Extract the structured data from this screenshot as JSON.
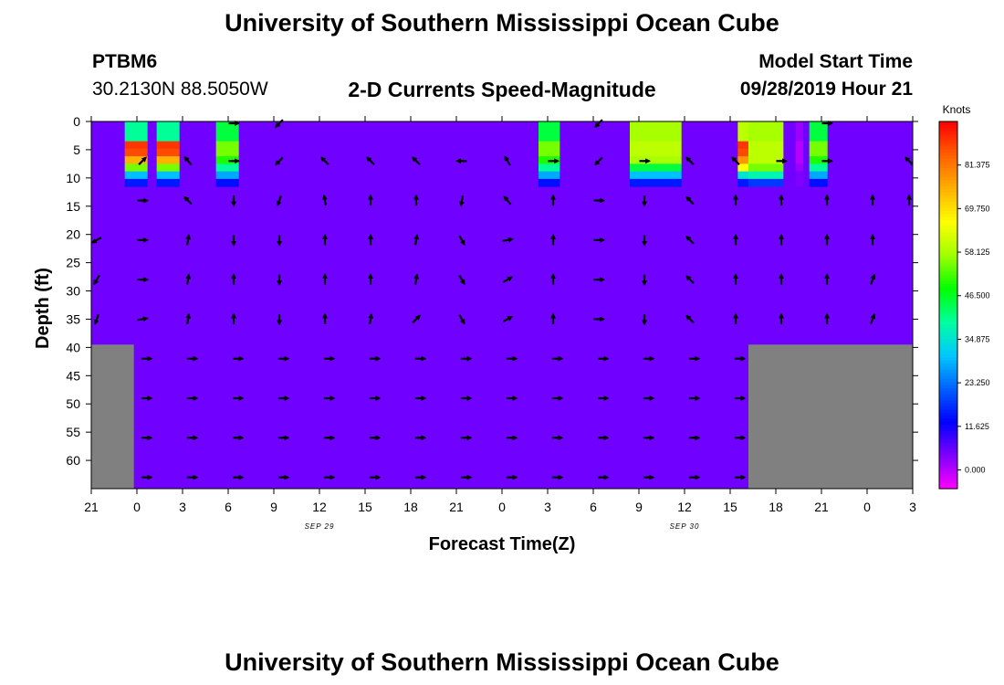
{
  "page": {
    "title_top": "University of Southern Mississippi Ocean Cube",
    "title_bottom": "University of Southern Mississippi Ocean Cube",
    "station_id": "PTBM6",
    "station_coords": "30.2130N 88.5050W",
    "plot_title": "2-D Currents Speed-Magnitude",
    "model_start_label": "Model Start Time",
    "model_start_value": "09/28/2019 Hour 21"
  },
  "chart_data": {
    "type": "heatmap",
    "title": "2-D Currents Speed-Magnitude",
    "xlabel": "Forecast Time(Z)",
    "ylabel": "Depth (ft)",
    "x_hours_range": [
      0,
      54
    ],
    "y_range_ft": [
      0,
      65
    ],
    "x_tick_labels": [
      "21",
      "0",
      "3",
      "6",
      "9",
      "12",
      "15",
      "18",
      "21",
      "0",
      "3",
      "6",
      "9",
      "12",
      "15",
      "18",
      "21",
      "0",
      "3"
    ],
    "y_ticks": [
      0,
      5,
      10,
      15,
      20,
      25,
      30,
      35,
      40,
      45,
      50,
      55,
      60
    ],
    "date_labels": [
      {
        "text": "SEP 29",
        "hour": 15
      },
      {
        "text": "SEP 30",
        "hour": 39
      }
    ],
    "colorbar": {
      "unit": "Knots",
      "tick_labels": [
        "81.375",
        "69.750",
        "58.125",
        "46.500",
        "34.875",
        "23.250",
        "11.625",
        "0.000"
      ],
      "tick_values": [
        81.375,
        69.75,
        58.125,
        46.5,
        34.875,
        23.25,
        11.625,
        0
      ],
      "range": [
        -5,
        93
      ],
      "colors": [
        "#ff00ff",
        "#8000ff",
        "#0000ff",
        "#0060ff",
        "#00c8ff",
        "#00ffa0",
        "#00ff00",
        "#a0ff00",
        "#ffff00",
        "#ffb000",
        "#ff6000",
        "#ff0000"
      ]
    },
    "background_speed": 5,
    "land_bottom": [
      {
        "from_hour": 0,
        "to_hour": 2.8,
        "from_depth": 39.5
      },
      {
        "from_hour": 43.2,
        "to_hour": 54,
        "from_depth": 39.5
      }
    ],
    "speed_patches": [
      {
        "from_hour": 2.2,
        "to_hour": 3.7,
        "speed_by_layer": [
          40,
          88,
          86,
          75,
          55,
          30,
          15
        ]
      },
      {
        "from_hour": 4.3,
        "to_hour": 5.8,
        "speed_by_layer": [
          40,
          88,
          86,
          75,
          55,
          30,
          15
        ]
      },
      {
        "from_hour": 8.2,
        "to_hour": 9.7,
        "speed_by_layer": [
          45,
          55,
          55,
          50,
          40,
          28,
          14
        ]
      },
      {
        "from_hour": 29.4,
        "to_hour": 30.8,
        "speed_by_layer": [
          45,
          55,
          55,
          50,
          40,
          28,
          14
        ]
      },
      {
        "from_hour": 35.4,
        "to_hour": 38.8,
        "speed_by_layer": [
          58,
          60,
          60,
          58,
          45,
          30,
          15
        ]
      },
      {
        "from_hour": 42.5,
        "to_hour": 43.2,
        "speed_by_layer": [
          60,
          88,
          86,
          78,
          66,
          35,
          15
        ]
      },
      {
        "from_hour": 43.2,
        "to_hour": 45.5,
        "speed_by_layer": [
          58,
          60,
          60,
          60,
          55,
          38,
          18
        ]
      },
      {
        "from_hour": 46.3,
        "to_hour": 46.8,
        "speed_by_layer": [
          2,
          0,
          0,
          0,
          2,
          4,
          4
        ]
      },
      {
        "from_hour": 47.2,
        "to_hour": 48.4,
        "speed_by_layer": [
          45,
          55,
          55,
          50,
          40,
          28,
          14
        ]
      }
    ],
    "vector_depths_upper": [
      0,
      7,
      14,
      21,
      28,
      35
    ],
    "vector_depths_lower": [
      42,
      49,
      56,
      63
    ],
    "vector_columns_upper": [
      {
        "hour": 0.0,
        "angles": [
          null,
          null,
          null,
          210,
          240,
          250
        ]
      },
      {
        "hour": 3.0,
        "angles": [
          null,
          45,
          0,
          0,
          0,
          10
        ]
      },
      {
        "hour": 6.0,
        "angles": [
          null,
          130,
          135,
          80,
          80,
          80
        ]
      },
      {
        "hour": 9.0,
        "angles": [
          0,
          0,
          270,
          270,
          90,
          90
        ]
      },
      {
        "hour": 12.0,
        "angles": [
          225,
          225,
          250,
          270,
          270,
          270
        ]
      },
      {
        "hour": 15.0,
        "angles": [
          null,
          135,
          100,
          90,
          90,
          90
        ]
      },
      {
        "hour": 18.0,
        "angles": [
          null,
          135,
          90,
          90,
          90,
          80
        ]
      },
      {
        "hour": 21.0,
        "angles": [
          null,
          135,
          90,
          80,
          80,
          45
        ]
      },
      {
        "hour": 24.0,
        "angles": [
          null,
          180,
          260,
          300,
          300,
          300
        ]
      },
      {
        "hour": 27.0,
        "angles": [
          null,
          120,
          130,
          10,
          30,
          30
        ]
      },
      {
        "hour": 30.0,
        "angles": [
          null,
          0,
          90,
          90,
          90,
          90
        ]
      },
      {
        "hour": 33.0,
        "angles": [
          225,
          225,
          0,
          0,
          0,
          0
        ]
      },
      {
        "hour": 36.0,
        "angles": [
          null,
          0,
          270,
          270,
          270,
          270
        ]
      },
      {
        "hour": 39.0,
        "angles": [
          null,
          135,
          135,
          135,
          135,
          135
        ]
      },
      {
        "hour": 42.0,
        "angles": [
          null,
          135,
          90,
          90,
          90,
          90
        ]
      },
      {
        "hour": 45.0,
        "angles": [
          null,
          0,
          90,
          90,
          90,
          90
        ]
      },
      {
        "hour": 48.0,
        "angles": [
          0,
          0,
          90,
          90,
          90,
          90
        ]
      },
      {
        "hour": 51.0,
        "angles": [
          null,
          null,
          90,
          90,
          70,
          70
        ]
      },
      {
        "hour": 54.0,
        "angles": [
          null,
          135,
          90,
          null,
          null,
          null
        ]
      }
    ],
    "vector_columns_lower": [
      {
        "hour": 3.5,
        "angle": 0
      },
      {
        "hour": 6.5,
        "angle": 0
      },
      {
        "hour": 9.5,
        "angle": 0
      },
      {
        "hour": 12.5,
        "angle": 0
      },
      {
        "hour": 15.5,
        "angle": 0
      },
      {
        "hour": 18.5,
        "angle": 0
      },
      {
        "hour": 21.5,
        "angle": 0
      },
      {
        "hour": 24.5,
        "angle": 0
      },
      {
        "hour": 27.5,
        "angle": 0
      },
      {
        "hour": 30.5,
        "angle": 0
      },
      {
        "hour": 33.5,
        "angle": 0
      },
      {
        "hour": 36.5,
        "angle": 0
      },
      {
        "hour": 39.5,
        "angle": 0
      },
      {
        "hour": 42.5,
        "angle": 0
      }
    ]
  }
}
